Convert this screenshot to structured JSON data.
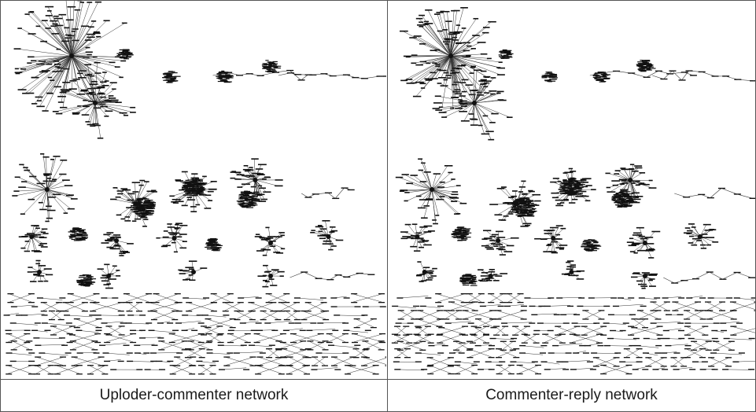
{
  "panels": [
    {
      "caption": "Uploder-commenter network"
    },
    {
      "caption": "Commenter-reply network"
    }
  ],
  "colors": {
    "ink": "#111111",
    "edge": "#333333",
    "border": "#555555"
  }
}
